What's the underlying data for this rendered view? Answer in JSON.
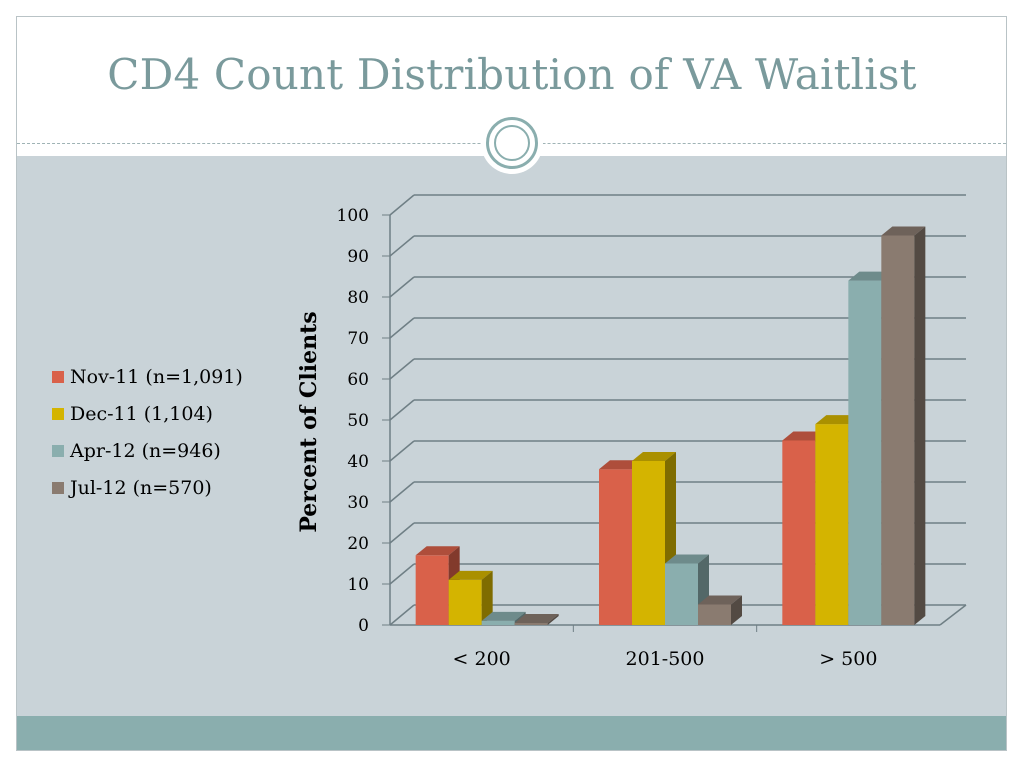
{
  "slide": {
    "title": "CD4 Count Distribution of VA Waitlist"
  },
  "colors": {
    "title": "#7a9a9c",
    "background": "#c9d3d8",
    "accent": "#8aaeae"
  },
  "chart_data": {
    "type": "bar",
    "title": "",
    "xlabel": "",
    "ylabel": "Percent of Clients",
    "ylim": [
      0,
      100
    ],
    "yticks": [
      0,
      10,
      20,
      30,
      40,
      50,
      60,
      70,
      80,
      90,
      100
    ],
    "categories": [
      "< 200",
      "201-500",
      "> 500"
    ],
    "series": [
      {
        "name": "Nov-11 (n=1,091)",
        "color": "#d9614a",
        "values": [
          17,
          38,
          45
        ]
      },
      {
        "name": "Dec-11 (1,104)",
        "color": "#d4b400",
        "values": [
          11,
          40,
          49
        ]
      },
      {
        "name": "Apr-12 (n=946)",
        "color": "#8aaeae",
        "values": [
          1,
          15,
          84
        ]
      },
      {
        "name": "Jul-12 (n=570)",
        "color": "#8a7b70",
        "values": [
          0.5,
          5,
          95
        ]
      }
    ],
    "grid": true,
    "legend": "left",
    "style": "3d-clustered-column"
  }
}
